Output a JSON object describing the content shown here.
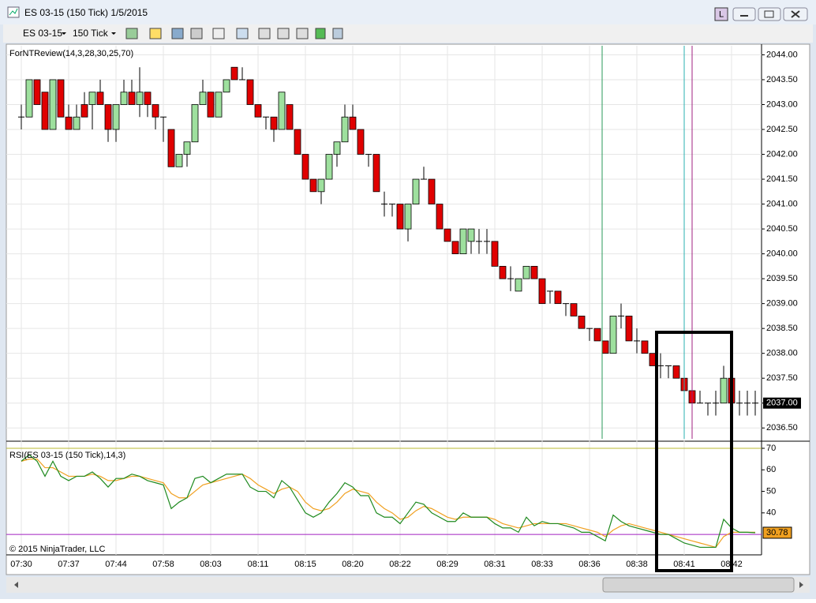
{
  "window": {
    "title": "ES 03-15 (150 Tick)  1/5/2015",
    "badge": "L"
  },
  "toolbar": {
    "instrument": "ES 03-15",
    "interval": "150 Tick"
  },
  "copyright": "© 2015 NinjaTrader, LLC",
  "chart_data": [
    {
      "type": "candlestick",
      "title": "ForNTReview(14,3,28,30,25,70)",
      "categories": [
        "07:30",
        null,
        null,
        null,
        null,
        null,
        "07:37",
        null,
        null,
        null,
        null,
        null,
        "07:44",
        null,
        null,
        null,
        null,
        null,
        "07:58",
        null,
        null,
        null,
        null,
        null,
        "08:03",
        null,
        null,
        null,
        null,
        null,
        "08:11",
        null,
        null,
        null,
        null,
        null,
        "08:15",
        null,
        null,
        null,
        null,
        null,
        "08:20",
        null,
        null,
        null,
        null,
        null,
        "08:22",
        null,
        null,
        null,
        null,
        null,
        "08:29",
        null,
        null,
        null,
        null,
        null,
        "08:31",
        null,
        null,
        null,
        null,
        null,
        "08:33",
        null,
        null,
        null,
        null,
        null,
        "08:36",
        null,
        null,
        null,
        null,
        null,
        "08:38",
        null,
        null,
        null,
        null,
        null,
        "08:41",
        null,
        null,
        null,
        null,
        null,
        "08:42",
        null,
        null,
        null
      ],
      "open": [
        2042.75,
        2042.75,
        2043.5,
        2043.25,
        2042.5,
        2043.5,
        2042.75,
        2042.5,
        2043.0,
        2043.0,
        2043.25,
        2043.0,
        2042.5,
        2043.0,
        2043.25,
        2043.0,
        2043.25,
        2043.0,
        2042.75,
        2042.5,
        2041.75,
        2042.0,
        2042.25,
        2043.0,
        2043.25,
        2042.75,
        2043.25,
        2043.75,
        2043.5,
        2043.5,
        2043.0,
        2042.75,
        2042.75,
        2042.5,
        2043.0,
        2042.5,
        2042.0,
        2041.5,
        2041.25,
        2041.5,
        2042.0,
        2042.25,
        2042.75,
        2042.5,
        2042.0,
        2042.0,
        2041.0,
        2041.0,
        2041.0,
        2040.5,
        2041.0,
        2041.5,
        2041.5,
        2041.0,
        2040.5,
        2040.25,
        2040.0,
        2040.25,
        2040.25,
        2040.25,
        2040.25,
        2039.75,
        2039.5,
        2039.25,
        2039.5,
        2039.75,
        2039.5,
        2039.25,
        2039.25,
        2039.0,
        2039.0,
        2038.75,
        2038.5,
        2038.5,
        2038.25,
        2038.0,
        2038.75,
        2038.75,
        2038.25,
        2038.25,
        2038.0,
        2037.75,
        2037.75,
        2037.75,
        2037.5,
        2037.25,
        2037.0,
        2037.0,
        2037.0,
        2037.0,
        2037.5,
        2037.0,
        2037.0,
        2037.0
      ],
      "high": [
        2043.0,
        2043.5,
        2043.5,
        2043.25,
        2043.5,
        2043.5,
        2043.0,
        2043.0,
        2043.25,
        2043.25,
        2043.5,
        2043.0,
        2043.0,
        2043.5,
        2043.5,
        2043.75,
        2043.25,
        2043.0,
        2042.75,
        2042.5,
        2042.0,
        2042.25,
        2043.0,
        2043.5,
        2043.25,
        2043.25,
        2043.5,
        2043.75,
        2043.75,
        2043.5,
        2043.0,
        2042.75,
        2042.75,
        2043.25,
        2043.0,
        2042.5,
        2042.0,
        2041.5,
        2041.5,
        2042.0,
        2042.25,
        2043.0,
        2043.0,
        2042.5,
        2042.0,
        2042.0,
        2041.25,
        2041.0,
        2041.0,
        2041.0,
        2041.5,
        2041.75,
        2041.5,
        2041.0,
        2040.5,
        2040.25,
        2040.5,
        2040.5,
        2040.5,
        2040.5,
        2040.25,
        2039.75,
        2039.75,
        2039.5,
        2039.75,
        2039.75,
        2039.5,
        2039.25,
        2039.25,
        2039.0,
        2039.0,
        2038.75,
        2038.5,
        2038.5,
        2038.25,
        2038.75,
        2039.0,
        2038.75,
        2038.5,
        2038.25,
        2038.0,
        2038.0,
        2037.75,
        2037.75,
        2037.5,
        2037.25,
        2037.25,
        2037.0,
        2037.25,
        2037.75,
        2037.5,
        2037.25,
        2037.25,
        2037.25
      ],
      "low": [
        2042.5,
        2042.75,
        2043.0,
        2042.5,
        2042.5,
        2042.75,
        2042.5,
        2042.5,
        2042.75,
        2042.5,
        2043.0,
        2042.25,
        2042.25,
        2043.0,
        2043.0,
        2042.75,
        2042.75,
        2042.5,
        2042.25,
        2041.75,
        2041.75,
        2041.75,
        2042.25,
        2043.0,
        2042.75,
        2042.75,
        2043.25,
        2043.5,
        2043.5,
        2043.0,
        2042.75,
        2042.5,
        2042.25,
        2042.5,
        2042.5,
        2042.0,
        2041.5,
        2041.25,
        2041.0,
        2041.5,
        2041.75,
        2042.25,
        2042.5,
        2042.0,
        2041.75,
        2041.25,
        2040.75,
        2040.75,
        2040.5,
        2040.25,
        2041.0,
        2041.5,
        2041.0,
        2040.5,
        2040.25,
        2040.0,
        2040.0,
        2040.0,
        2040.0,
        2040.0,
        2039.75,
        2039.5,
        2039.25,
        2039.25,
        2039.5,
        2039.5,
        2039.0,
        2039.0,
        2039.0,
        2038.75,
        2038.75,
        2038.5,
        2038.25,
        2038.25,
        2038.0,
        2038.0,
        2038.5,
        2038.25,
        2038.0,
        2038.0,
        2037.75,
        2037.5,
        2037.5,
        2037.5,
        2037.25,
        2036.75,
        2037.0,
        2036.75,
        2036.75,
        2037.0,
        2036.75,
        2036.75,
        2036.75,
        2036.75
      ],
      "close": [
        2042.75,
        2043.5,
        2043.0,
        2042.5,
        2043.5,
        2042.75,
        2042.5,
        2042.75,
        2042.75,
        2043.25,
        2043.0,
        2042.5,
        2043.0,
        2043.25,
        2043.0,
        2043.25,
        2043.0,
        2042.75,
        2042.75,
        2041.75,
        2042.0,
        2042.25,
        2043.0,
        2043.25,
        2042.75,
        2043.25,
        2043.5,
        2043.5,
        2043.5,
        2043.0,
        2042.75,
        2042.75,
        2042.5,
        2043.25,
        2042.5,
        2042.0,
        2041.5,
        2041.25,
        2041.5,
        2042.0,
        2042.25,
        2042.75,
        2042.5,
        2042.0,
        2042.0,
        2041.25,
        2041.0,
        2041.0,
        2040.5,
        2041.0,
        2041.5,
        2041.5,
        2041.0,
        2040.5,
        2040.25,
        2040.0,
        2040.5,
        2040.5,
        2040.25,
        2040.25,
        2039.75,
        2039.5,
        2039.5,
        2039.5,
        2039.75,
        2039.5,
        2039.0,
        2039.25,
        2039.0,
        2039.0,
        2038.75,
        2038.5,
        2038.5,
        2038.25,
        2038.0,
        2038.75,
        2038.75,
        2038.25,
        2038.25,
        2038.0,
        2037.75,
        2037.75,
        2037.75,
        2037.5,
        2037.25,
        2037.0,
        2037.0,
        2037.0,
        2037.0,
        2037.5,
        2037.0,
        2037.0,
        2037.0,
        2037.0
      ],
      "up_color": "#9ee09e",
      "down_color": "#e00000",
      "ylim": [
        2036.25,
        2044.15
      ],
      "yticks": [
        {
          "value": 2036.5,
          "label": "2036.50"
        },
        {
          "value": 2037,
          "label": "2037.00"
        },
        {
          "value": 2037.5,
          "label": "2037.50"
        },
        {
          "value": 2038,
          "label": "2038.00"
        },
        {
          "value": 2038.5,
          "label": "2038.50"
        },
        {
          "value": 2039,
          "label": "2039.00"
        },
        {
          "value": 2039.5,
          "label": "2039.50"
        },
        {
          "value": 2040,
          "label": "2040.00"
        },
        {
          "value": 2040.5,
          "label": "2040.50"
        },
        {
          "value": 2041,
          "label": "2041.00"
        },
        {
          "value": 2041.5,
          "label": "2041.50"
        },
        {
          "value": 2042,
          "label": "2042.00"
        },
        {
          "value": 2042.5,
          "label": "2042.50"
        },
        {
          "value": 2043,
          "label": "2043.00"
        },
        {
          "value": 2043.5,
          "label": "2043.50"
        },
        {
          "value": 2044,
          "label": "2044.00"
        }
      ],
      "last_value": {
        "value": 2037,
        "label": "2037.00"
      },
      "grid": true
    },
    {
      "type": "line",
      "title": "RSI(ES 03-15 (150 Tick),14,3)",
      "series": [
        {
          "color": "#1f8a1f",
          "values": [
            64,
            67,
            64,
            57,
            64,
            57,
            55,
            57,
            57,
            59,
            56,
            52,
            56,
            56,
            58,
            57,
            55,
            54,
            53,
            42,
            45,
            47,
            56,
            57,
            54,
            56,
            58,
            58,
            58,
            52,
            50,
            50,
            47,
            55,
            52,
            46,
            40,
            38,
            40,
            45,
            49,
            54,
            52,
            48,
            48,
            40,
            38,
            38,
            35,
            40,
            45,
            44,
            40,
            38,
            36,
            36,
            40,
            38,
            38,
            38,
            35,
            33,
            33,
            31,
            38,
            34,
            36,
            35,
            35,
            34,
            33,
            31,
            31,
            29,
            27,
            39,
            36,
            34,
            33,
            32,
            31,
            30,
            30,
            28,
            26,
            25,
            24,
            24,
            24,
            37,
            33,
            31,
            31,
            30.78
          ]
        },
        {
          "color": "#f0a020",
          "values": [
            64,
            65,
            65,
            61,
            61,
            59,
            57,
            57,
            57,
            58,
            57,
            55,
            55,
            56,
            57,
            57,
            56,
            55,
            54,
            49,
            47,
            47,
            50,
            53,
            54,
            55,
            56,
            57,
            58,
            56,
            53,
            51,
            49,
            51,
            52,
            50,
            45,
            42,
            41,
            42,
            45,
            49,
            51,
            50,
            49,
            45,
            42,
            40,
            37,
            38,
            41,
            43,
            42,
            40,
            38,
            37,
            38,
            38,
            38,
            38,
            37,
            35,
            34,
            33,
            34,
            35,
            35,
            35,
            35,
            35,
            34,
            33,
            32,
            31,
            29,
            32,
            34,
            35,
            34,
            33,
            32,
            31,
            30,
            29,
            28,
            27,
            26,
            25,
            24,
            29,
            31,
            31,
            31,
            31
          ]
        }
      ],
      "ylim": [
        20.5,
        72.2
      ],
      "yticks": [
        40,
        50,
        60,
        70
      ],
      "levels": [
        {
          "value": 70,
          "color": "#b8b832"
        },
        {
          "value": 30,
          "color": "#a020c0"
        }
      ]
    }
  ]
}
